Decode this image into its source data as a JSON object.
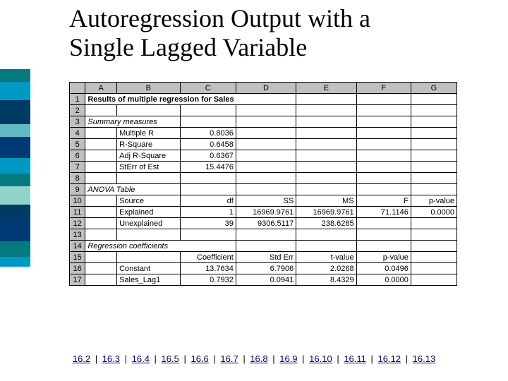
{
  "title_line1": "Autoregression Output with a",
  "title_line2": "Single Lagged Variable",
  "sidebar_colors": [
    "#047a7e",
    "#0098c5",
    "#003b64",
    "#5fbcc3",
    "#003a75",
    "#0098c5",
    "#047a7e",
    "#8fd3c9",
    "#003b64",
    "#003a75",
    "#047a7e",
    "#0098c5"
  ],
  "sidebar_heights": [
    18,
    26,
    34,
    18,
    30,
    22,
    18,
    26,
    18,
    34,
    22,
    14
  ],
  "col_headers": [
    "A",
    "B",
    "C",
    "D",
    "E",
    "F",
    "G"
  ],
  "row_labels": [
    "1",
    "2",
    "3",
    "4",
    "5",
    "6",
    "7",
    "8",
    "9",
    "10",
    "11",
    "12",
    "13",
    "14",
    "15",
    "16",
    "17"
  ],
  "row1": {
    "text": "Results of multiple regression for Sales"
  },
  "row3": {
    "text": "Summary measures"
  },
  "summary": {
    "r4_label": "Multiple R",
    "r4_val": "0.8036",
    "r5_label": "R-Square",
    "r5_val": "0.6458",
    "r6_label": "Adj R-Square",
    "r6_val": "0.6367",
    "r7_label": "StErr of Est",
    "r7_val": "15.4476"
  },
  "row9": {
    "text": "ANOVA Table"
  },
  "anova_header": {
    "source": "Source",
    "df": "df",
    "ss": "SS",
    "ms": "MS",
    "f": "F",
    "p": "p-value"
  },
  "anova": {
    "r11_label": "Explained",
    "r11_df": "1",
    "r11_ss": "16969.9761",
    "r11_ms": "16969.9761",
    "r11_f": "71.1146",
    "r11_p": "0.0000",
    "r12_label": "Unexplained",
    "r12_df": "39",
    "r12_ss": "9306.5117",
    "r12_ms": "238.6285"
  },
  "row14": {
    "text": "Regression coefficients"
  },
  "coef_header": {
    "coef": "Coefficient",
    "se": "Std Err",
    "t": "t-value",
    "p": "p-value"
  },
  "coef": {
    "r16_label": "Constant",
    "r16_c": "13.7634",
    "r16_se": "6.7906",
    "r16_t": "2.0268",
    "r16_p": "0.0496",
    "r17_label": "Sales_Lag1",
    "r17_c": "0.7932",
    "r17_se": "0.0941",
    "r17_t": "8.4329",
    "r17_p": "0.0000"
  },
  "nav": [
    "16.2",
    "16.3",
    "16.4",
    "16.5",
    "16.6",
    "16.7",
    "16.8",
    "16.9",
    "16.10",
    "16.11",
    "16.12",
    "16.13"
  ],
  "sep": "|"
}
